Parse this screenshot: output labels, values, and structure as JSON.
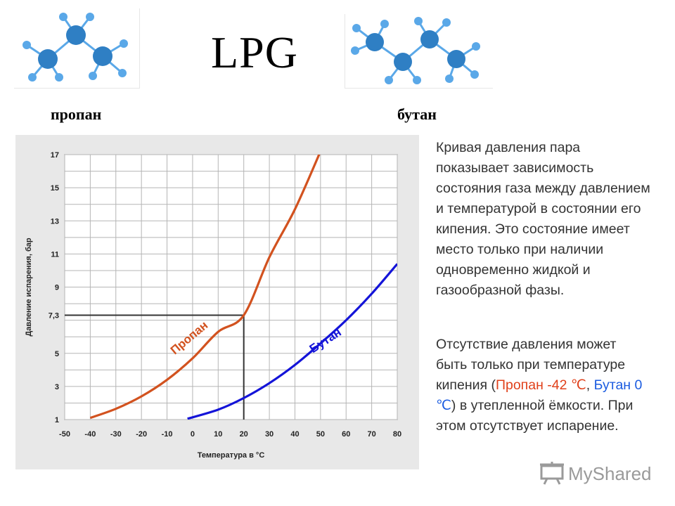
{
  "header": {
    "title": "LPG",
    "propane_label": "пропан",
    "butane_label": "бутан"
  },
  "colors": {
    "propane": "#d2521f",
    "butane": "#1414d8",
    "atom": "#2f7fc4",
    "hydrogen": "#5aa8e8"
  },
  "chart_data": {
    "type": "line",
    "xlabel": "Температура в °С",
    "ylabel": "Давление испарения, бар",
    "xlim": [
      -50,
      80
    ],
    "ylim": [
      1,
      17
    ],
    "x_ticks": [
      -50,
      -40,
      -30,
      -20,
      -10,
      0,
      10,
      20,
      30,
      40,
      50,
      60,
      70,
      80
    ],
    "y_ticks": [
      1,
      3,
      5,
      7.3,
      9,
      11,
      13,
      15,
      17
    ],
    "y_tick_labels": [
      "1",
      "3",
      "5",
      "7,3",
      "9",
      "11",
      "13",
      "15",
      "17"
    ],
    "grid": true,
    "series": [
      {
        "name": "Пропан",
        "color": "#d2521f",
        "x": [
          -40,
          -30,
          -20,
          -10,
          0,
          10,
          20,
          30,
          40,
          50
        ],
        "y": [
          1.1,
          1.65,
          2.4,
          3.4,
          4.7,
          6.3,
          7.3,
          10.8,
          13.7,
          17.2
        ]
      },
      {
        "name": "Бутан",
        "color": "#1414d8",
        "x": [
          -2,
          10,
          20,
          30,
          40,
          50,
          60,
          70,
          80
        ],
        "y": [
          1.05,
          1.6,
          2.3,
          3.2,
          4.3,
          5.6,
          7.0,
          8.6,
          10.4
        ]
      }
    ],
    "annotation": {
      "x": 20,
      "y": 7.3
    }
  },
  "text": {
    "p1": "Кривая давления пара показывает зависимость состояния газа между давлением и температурой в состоянии его кипения. Это состояние имеет место только при наличии одновременно жидкой и газообразной фазы.",
    "p2_a": "Отсутствие давления может быть только при температуре кипения (",
    "p2_propane": "Пропан -42 ℃",
    "p2_sep": ", ",
    "p2_butane": "Бутан 0 ℃",
    "p2_b": ") в утепленной ёмкости. При этом отсутствует испарение."
  },
  "watermark": {
    "text": "MyShared"
  }
}
